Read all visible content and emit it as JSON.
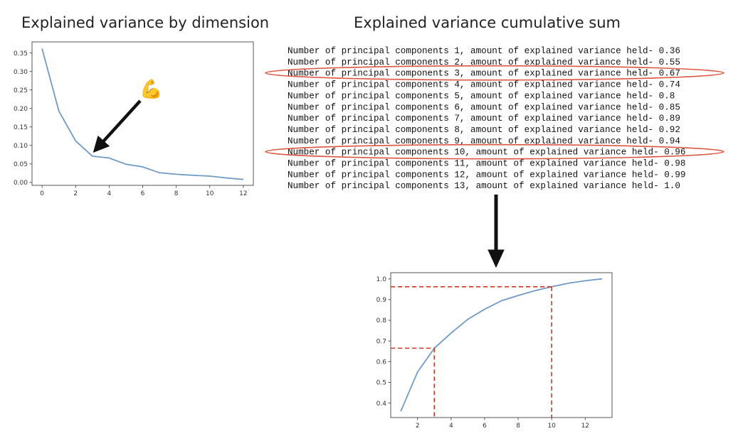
{
  "titles": {
    "left": "Explained variance by dimension",
    "right": "Explained variance cumulative sum"
  },
  "emoji": "💪",
  "output_lines": [
    "Number of principal components 1, amount of explained variance held- 0.36",
    "Number of principal components 2, amount of explained variance held- 0.55",
    "Number of principal components 3, amount of explained variance held- 0.67",
    "Number of principal components 4, amount of explained variance held- 0.74",
    "Number of principal components 5, amount of explained variance held- 0.8",
    "Number of principal components 6, amount of explained variance held- 0.85",
    "Number of principal components 7, amount of explained variance held- 0.89",
    "Number of principal components 8, amount of explained variance held- 0.92",
    "Number of principal components 9, amount of explained variance held- 0.94",
    "Number of principal components 10, amount of explained variance held- 0.96",
    "Number of principal components 11, amount of explained variance held- 0.98",
    "Number of principal components 12, amount of explained variance held- 0.99",
    "Number of principal components 13, amount of explained variance held- 1.0"
  ],
  "highlighted_components": [
    3,
    10
  ],
  "colors": {
    "line": "#6f9bc6",
    "highlight": "#dd5540",
    "guide": "#dd3322",
    "arrow": "#111111"
  },
  "chart_data": [
    {
      "type": "line",
      "title": "Explained variance by dimension",
      "x": [
        0,
        1,
        2,
        3,
        4,
        5,
        6,
        7,
        8,
        9,
        10,
        11,
        12
      ],
      "y": [
        0.362,
        0.193,
        0.112,
        0.071,
        0.066,
        0.049,
        0.042,
        0.026,
        0.022,
        0.019,
        0.017,
        0.012,
        0.008
      ],
      "xlim": [
        -0.6,
        12.6
      ],
      "ylim": [
        -0.008,
        0.38
      ],
      "xticks": [
        0,
        2,
        4,
        6,
        8,
        10,
        12
      ],
      "xtick_labels": [
        "0",
        "2",
        "4",
        "6",
        "8",
        "10",
        "12"
      ],
      "yticks": [
        0.0,
        0.05,
        0.1,
        0.15,
        0.2,
        0.25,
        0.3,
        0.35
      ],
      "ytick_labels": [
        "0.00",
        "0.05",
        "0.10",
        "0.15",
        "0.20",
        "0.25",
        "0.30",
        "0.35"
      ],
      "annotation": {
        "arrow_to": [
          3,
          0.071
        ],
        "label": "💪"
      }
    },
    {
      "type": "line",
      "title": "Explained variance cumulative sum",
      "x": [
        1,
        2,
        3,
        4,
        5,
        6,
        7,
        8,
        9,
        10,
        11,
        12,
        13
      ],
      "y": [
        0.36,
        0.55,
        0.665,
        0.738,
        0.805,
        0.853,
        0.894,
        0.92,
        0.943,
        0.962,
        0.979,
        0.991,
        1.0
      ],
      "xlim": [
        0.4,
        13.6
      ],
      "ylim": [
        0.33,
        1.03
      ],
      "xticks": [
        2,
        4,
        6,
        8,
        10,
        12
      ],
      "xtick_labels": [
        "2",
        "4",
        "6",
        "8",
        "10",
        "12"
      ],
      "yticks": [
        0.4,
        0.5,
        0.6,
        0.7,
        0.8,
        0.9,
        1.0
      ],
      "ytick_labels": [
        "0.4",
        "0.5",
        "0.6",
        "0.7",
        "0.8",
        "0.9",
        "1.0"
      ],
      "reference_lines": [
        {
          "x": 3,
          "y": 0.665
        },
        {
          "x": 10,
          "y": 0.962
        }
      ]
    }
  ]
}
